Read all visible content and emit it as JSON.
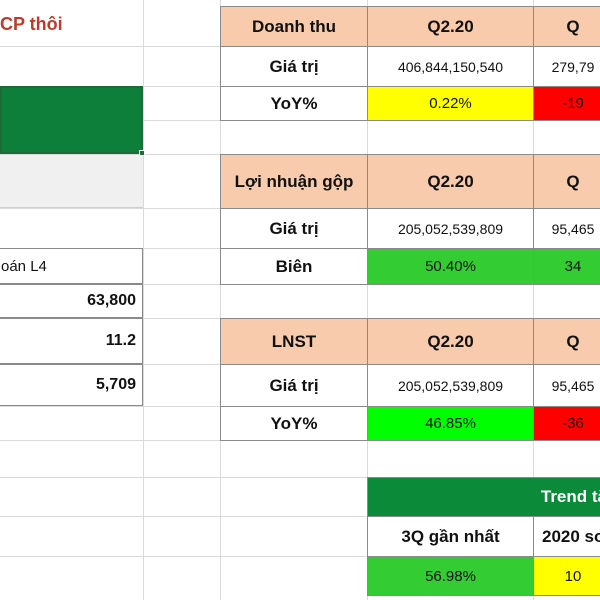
{
  "colors": {
    "head_bg": "#f8cbad",
    "yellow": "#ffff00",
    "red": "#ff0000",
    "green": "#00ff00",
    "light_green": "#33cc33",
    "dark_green": "#0b8a3a",
    "selected_green": "#0e7e3b",
    "title_red": "#c0392b"
  },
  "left_panel": {
    "title_fragment": "CP thôi",
    "label_fragment": "oán L4",
    "values": [
      "63,800",
      "11.2",
      "5,709"
    ]
  },
  "revenue_table": {
    "header": "Doanh thu",
    "col1": "Q2.20",
    "col2": "Q",
    "row1_label": "Giá trị",
    "row1_v1": "406,844,150,540",
    "row1_v2": "279,79",
    "row2_label": "YoY%",
    "row2_v1": "0.22%",
    "row2_v2": "-19"
  },
  "gross_profit_table": {
    "header": "Lợi nhuận gộp",
    "col1": "Q2.20",
    "col2": "Q",
    "row1_label": "Giá trị",
    "row1_v1": "205,052,539,809",
    "row1_v2": "95,465",
    "row2_label": "Biên",
    "row2_v1": "50.40%",
    "row2_v2": "34"
  },
  "net_profit_table": {
    "header": "LNST",
    "col1": "Q2.20",
    "col2": "Q",
    "row1_label": "Giá trị",
    "row1_v1": "205,052,539,809",
    "row1_v2": "95,465",
    "row2_label": "YoY%",
    "row2_v1": "46.85%",
    "row2_v2": "-36"
  },
  "trend_table": {
    "header": "Trend tă",
    "col1": "3Q gần nhất",
    "col2": "2020 so",
    "v1": "56.98%",
    "v2": "10"
  }
}
